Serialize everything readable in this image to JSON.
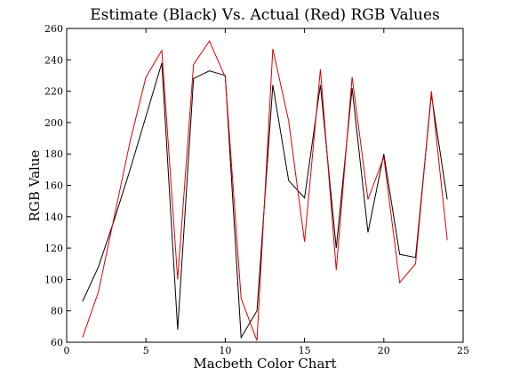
{
  "chart_data": {
    "type": "line",
    "title": "Estimate (Black) Vs. Actual (Red) RGB Values",
    "xlabel": "Macbeth Color Chart",
    "ylabel": "RGB Value",
    "xlim": [
      0,
      25
    ],
    "ylim": [
      60,
      260
    ],
    "xticks": [
      "0",
      "5",
      "10",
      "15",
      "20",
      "25"
    ],
    "yticks": [
      "60",
      "80",
      "100",
      "120",
      "140",
      "160",
      "180",
      "200",
      "220",
      "240",
      "260"
    ],
    "grid": false,
    "legend": "none",
    "x": [
      1,
      2,
      3,
      4,
      5,
      6,
      7,
      8,
      9,
      10,
      11,
      12,
      13,
      14,
      15,
      16,
      17,
      18,
      19,
      20,
      21,
      22,
      23,
      24
    ],
    "series": [
      {
        "color": "#000000",
        "values": [
          86,
          108,
          138,
          170,
          204,
          238,
          68,
          228,
          233,
          230,
          63,
          80,
          224,
          163,
          152,
          224,
          120,
          222,
          130,
          180,
          116,
          114,
          218,
          151
        ]
      },
      {
        "color": "#dd0000",
        "values": [
          63,
          92,
          140,
          188,
          229,
          246,
          100,
          237,
          252,
          229,
          88,
          61,
          247,
          201,
          124,
          234,
          106,
          229,
          151,
          178,
          98,
          110,
          220,
          125
        ]
      }
    ]
  }
}
